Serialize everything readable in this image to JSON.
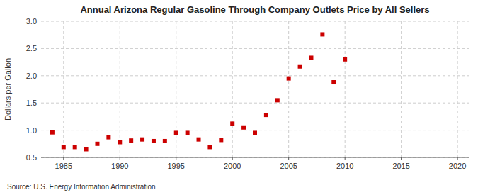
{
  "chart_data": {
    "type": "scatter",
    "title": "Annual Arizona Regular Gasoline Through Company Outlets Price by All Sellers",
    "ylabel": "Dollars per Gallon",
    "annotations": [
      "Source: U.S. Energy Information Administration"
    ],
    "x": [
      1984,
      1985,
      1986,
      1987,
      1988,
      1989,
      1990,
      1991,
      1992,
      1993,
      1994,
      1995,
      1996,
      1997,
      1998,
      1999,
      2000,
      2001,
      2002,
      2003,
      2004,
      2005,
      2006,
      2007,
      2008,
      2009,
      2010
    ],
    "values": [
      0.96,
      0.69,
      0.69,
      0.65,
      0.75,
      0.87,
      0.78,
      0.81,
      0.83,
      0.8,
      0.8,
      0.95,
      0.95,
      0.83,
      0.69,
      0.82,
      1.12,
      1.05,
      0.95,
      1.28,
      1.55,
      1.95,
      2.17,
      2.33,
      2.76,
      1.88,
      2.3
    ],
    "color": "#cc0000",
    "marker": "square",
    "xlim": [
      1983,
      2021
    ],
    "ylim": [
      0.5,
      3.0
    ],
    "xticks": [
      1985,
      1990,
      1995,
      2000,
      2005,
      2010,
      2015,
      2020
    ],
    "yticks": [
      0.5,
      {
        "value": 1.0,
        "label": "1.0"
      },
      1.5,
      {
        "value": 2.0,
        "label": "2.0"
      },
      2.5,
      {
        "value": 3.0,
        "label": "3.0"
      }
    ],
    "grid": true
  }
}
